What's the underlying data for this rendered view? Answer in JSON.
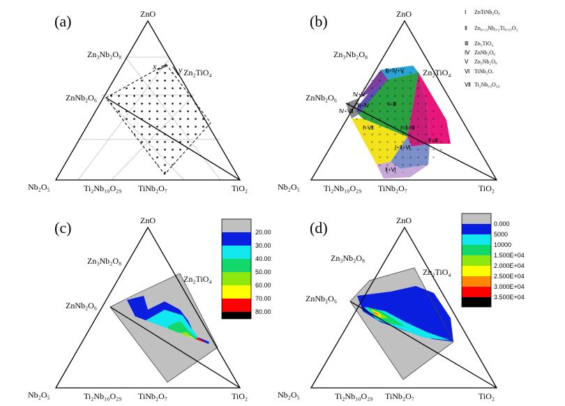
{
  "panels": [
    {
      "letter": "(a)",
      "vertices": {
        "top": "ZnO",
        "left": "Nb₂O₅",
        "right": "TiO₂"
      },
      "edge_labels": [
        "Zn₃Nb₂O₈",
        "ZnNb₂O₆",
        "Zn₂TiO₄",
        "Ti₂Nb₁₀O₂₉",
        "TiNb₂O₇"
      ],
      "axis_marks": [
        "x",
        "y"
      ]
    },
    {
      "letter": "(b)",
      "vertices": {
        "top": "ZnO",
        "left": "Nb₂O₅",
        "right": "TiO₂"
      },
      "edge_labels": [
        "Zn₃Nb₂O₈",
        "ZnNb₂O₆",
        "Zn₂TiO₄",
        "Ti₂Nb₁₀O₂₉",
        "TiNb₂O₇"
      ],
      "phase_key": [
        {
          "num": "Ⅰ",
          "name": "ZnTiNb₂O₈"
        },
        {
          "num": "Ⅱ",
          "name": "Zn₀.₁₅Nb₀.₃Ti₀.₅₅O₂"
        },
        {
          "num": "Ⅲ",
          "name": "Zn₂TiO₄"
        },
        {
          "num": "Ⅳ",
          "name": "ZnNb₂O₆"
        },
        {
          "num": "Ⅴ",
          "name": "Zn₃Nb₂O₈"
        },
        {
          "num": "Ⅵ",
          "name": "TiNb₂O₇"
        },
        {
          "num": "Ⅶ",
          "name": "Ti₂Nb₁₀O₂₉"
        }
      ],
      "regions": [
        {
          "label": "Ⅲ+Ⅳ+Ⅴ",
          "color": "#29a3d6"
        },
        {
          "label": "Ⅳ+Ⅴ",
          "color": "#7b3fa0"
        },
        {
          "label": "Ⅲ+Ⅳ",
          "color": "#5a4db0"
        },
        {
          "label": "Ⅳ+Ⅶ",
          "color": "#8a8a8a"
        },
        {
          "label": "Ⅰ+Ⅲ",
          "color": "#2aa040"
        },
        {
          "label": "Ⅰ+Ⅶ",
          "color": "#f2e21c"
        },
        {
          "label": "Ⅰ+Ⅱ+Ⅲ",
          "color": "#c81e78"
        },
        {
          "label": "Ⅱ+Ⅲ",
          "color": "#e8167a"
        },
        {
          "label": "Ⅰ+Ⅱ+Ⅵ",
          "color": "#7b8fc8"
        },
        {
          "label": "Ⅱ+Ⅵ",
          "color": "#c8a8d8"
        }
      ]
    },
    {
      "letter": "(c)",
      "vertices": {
        "top": "ZnO",
        "left": "Nb₂O₅",
        "right": "TiO₂"
      },
      "edge_labels": [
        "Zn₃Nb₂O₈",
        "ZnNb₂O₆",
        "Zn₂TiO₄",
        "Ti₂Nb₁₀O₂₉",
        "TiNb₂O₇"
      ],
      "legend": [
        {
          "value": "20.00",
          "color": "#c0c0c0"
        },
        {
          "value": "30.00",
          "color": "#0a1ee0"
        },
        {
          "value": "40.00",
          "color": "#12e6ee"
        },
        {
          "value": "50.00",
          "color": "#12d86a"
        },
        {
          "value": "60.00",
          "color": "#8ee810"
        },
        {
          "value": "70.00",
          "color": "#ffff00"
        },
        {
          "value": "80.00",
          "color": "#ff0000"
        },
        {
          "value": "",
          "color": "#000000"
        }
      ]
    },
    {
      "letter": "(d)",
      "vertices": {
        "top": "ZnO",
        "left": "Nb₂O₅",
        "right": "TiO₂"
      },
      "edge_labels": [
        "Zn₃Nb₂O₈",
        "ZnNb₂O₆",
        "Zn₂TiO₄",
        "Ti₂Nb₁₀O₂₉",
        "TiNb₂O₇"
      ],
      "legend": [
        {
          "value": "0.000",
          "color": "#c0c0c0"
        },
        {
          "value": "5000",
          "color": "#0a1ee0"
        },
        {
          "value": "10000",
          "color": "#12e6ee"
        },
        {
          "value": "1.500E+04",
          "color": "#12d86a"
        },
        {
          "value": "2.000E+04",
          "color": "#8ee810"
        },
        {
          "value": "2.500E+04",
          "color": "#ffff00"
        },
        {
          "value": "3.000E+04",
          "color": "#ff8800"
        },
        {
          "value": "3.500E+04",
          "color": "#ff0000"
        },
        {
          "value": "",
          "color": "#000000"
        }
      ]
    }
  ]
}
